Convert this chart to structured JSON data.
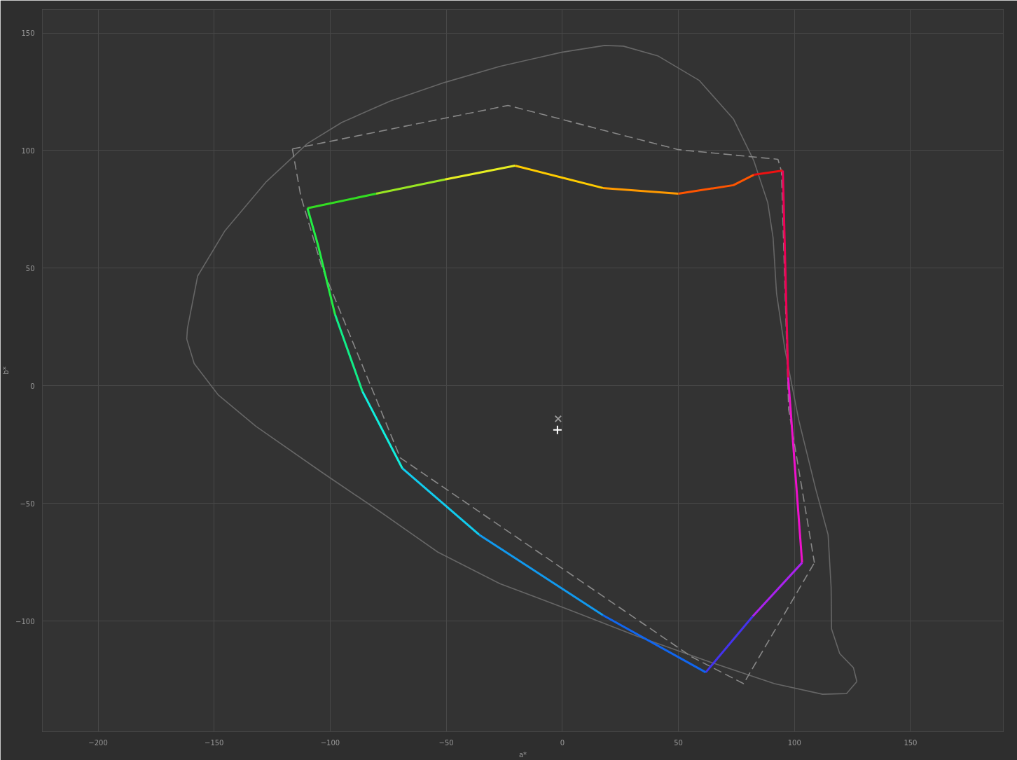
{
  "chart_data": {
    "type": "line",
    "xlabel": "a*",
    "ylabel": "b*",
    "xlim": [
      -224,
      190
    ],
    "ylim": [
      -147,
      160
    ],
    "xticks": [
      -200,
      -150,
      -100,
      -50,
      0,
      50,
      100,
      150
    ],
    "yticks": [
      -100,
      -50,
      0,
      50,
      100,
      150
    ],
    "grid": true,
    "series": [
      {
        "color": "#666666",
        "line_style": "solid",
        "x": [
          -161.8,
          -161.5,
          -157.1,
          -145.3,
          -127.5,
          -109.8,
          -95,
          -74.3,
          -50.6,
          -26.9,
          -0.3,
          18.3,
          26.3,
          41.1,
          58.9,
          73.7,
          82.5,
          88.5,
          90.8,
          92.3,
          95.9,
          101.8,
          109.2,
          114.5,
          115.8,
          116,
          119.5,
          125.4,
          126.9,
          null,
          -161.8,
          -158.6,
          -148.2,
          -132,
          -103.8,
          -77.2,
          -53.6,
          -26.9,
          2.7,
          32.2,
          61.8,
          91.4,
          112.1,
          122.5,
          126.9
        ],
        "values": [
          19.9,
          24.4,
          46.7,
          66,
          86.8,
          103,
          112,
          121,
          129,
          135.8,
          141.8,
          144.7,
          144.4,
          140.3,
          129.9,
          113.5,
          95.7,
          77.9,
          63,
          39.2,
          15.5,
          -14.3,
          -44,
          -63.3,
          -85.6,
          -103.4,
          -113.8,
          -119.8,
          -125.7,
          null,
          19.9,
          9.5,
          -3.9,
          -17.2,
          -36.6,
          -54.4,
          -70.7,
          -84.1,
          -95.1,
          -106.4,
          -116.8,
          -126.6,
          -131.1,
          -130.8,
          -125.7
        ]
      },
      {
        "color": "#888888",
        "line_style": "dashed",
        "x": [
          -116.3,
          -23.4,
          50,
          92.9,
          94.4,
          97.5,
          108.6
        ],
        "values": [
          100.7,
          119.2,
          100.4,
          96.3,
          91.2,
          -10,
          -75.2
        ]
      },
      {
        "color": "#888888",
        "line_style": "dashed",
        "x": [
          -116.3,
          -112.7,
          -103.8,
          -69.8,
          55.9,
          78.1,
          108.6
        ],
        "values": [
          100.7,
          80.8,
          51.1,
          -30.6,
          -115.3,
          -126.6,
          -75.2
        ]
      },
      {
        "color": "#33dd22",
        "x": [
          -109.8,
          -80.2
        ],
        "values": [
          75.5,
          81.7
        ]
      },
      {
        "color": "#99e622",
        "x": [
          -80.2,
          -50.6
        ],
        "values": [
          81.7,
          87.7
        ]
      },
      {
        "color": "#e6ee22",
        "x": [
          -50.6,
          -20.4
        ],
        "values": [
          87.7,
          93.6
        ]
      },
      {
        "color": "#ffcc00",
        "x": [
          -20.4,
          17.5
        ],
        "values": [
          93.6,
          84.1
        ]
      },
      {
        "color": "#ff9900",
        "x": [
          17.5,
          50
        ],
        "values": [
          84.1,
          81.7
        ]
      },
      {
        "color": "#ff5500",
        "x": [
          50,
          73.7,
          82.5
        ],
        "values": [
          81.7,
          85.3,
          89.7
        ]
      },
      {
        "color": "#ee1111",
        "x": [
          82.5,
          95
        ],
        "values": [
          89.7,
          91.5
        ]
      },
      {
        "color": "#ee0055",
        "x": [
          95,
          97.3
        ],
        "values": [
          91.5,
          3.6
        ]
      },
      {
        "color": "#ee11cc",
        "x": [
          97.3,
          103.3
        ],
        "values": [
          3.6,
          -75.2
        ]
      },
      {
        "color": "#aa22ee",
        "x": [
          103.3,
          82
        ],
        "values": [
          -75.2,
          -98
        ]
      },
      {
        "color": "#4433ee",
        "x": [
          82,
          61.8
        ],
        "values": [
          -98,
          -121.8
        ]
      },
      {
        "color": "#1166ee",
        "x": [
          61.8,
          17.5
        ],
        "values": [
          -121.8,
          -97.5
        ]
      },
      {
        "color": "#1199ee",
        "x": [
          17.5,
          -35.8
        ],
        "values": [
          -97.5,
          -63.3
        ]
      },
      {
        "color": "#11ccee",
        "x": [
          -35.8,
          -68.9
        ],
        "values": [
          -63.3,
          -35.1
        ]
      },
      {
        "color": "#11eedd",
        "x": [
          -68.9,
          -86.1
        ],
        "values": [
          -35.1,
          -2.4
        ]
      },
      {
        "color": "#11ee88",
        "x": [
          -86.1,
          -97.9
        ],
        "values": [
          -2.4,
          30.3
        ]
      },
      {
        "color": "#22ee44",
        "x": [
          -97.9,
          -105.3,
          -109.8
        ],
        "values": [
          30.3,
          60,
          75.5
        ]
      },
      {
        "type": "scatter",
        "marker": "x",
        "color": "#999999",
        "x": [
          -1.8
        ],
        "values": [
          -14
        ]
      },
      {
        "type": "scatter",
        "marker": "cross",
        "color": "#ffffff",
        "x": [
          -2.1
        ],
        "values": [
          -18.7
        ]
      }
    ]
  }
}
